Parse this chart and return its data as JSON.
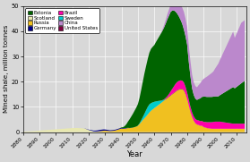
{
  "xlabel": "Year",
  "ylabel": "Mined shale, million tonnes",
  "ylim": [
    0,
    50
  ],
  "xlim": [
    1880,
    2016
  ],
  "stack_order": [
    "Scotland",
    "Russia",
    "Sweden",
    "Germany",
    "United_States",
    "Brazil",
    "Estonia",
    "China"
  ],
  "colors": {
    "Scotland": "#e8e8b0",
    "Russia": "#f0c020",
    "Sweden": "#00cccc",
    "Germany": "#00008b",
    "United_States": "#800040",
    "Brazil": "#ff00aa",
    "Estonia": "#006400",
    "China": "#bb88cc"
  },
  "labels": {
    "Scotland": "Scotland",
    "Russia": "Russia",
    "Sweden": "Sweden",
    "Germany": "Germany",
    "United_States": "United States",
    "Brazil": "Brazil",
    "Estonia": "Estonia",
    "China": "China"
  },
  "legend_order": [
    "Estonia",
    "Scotland",
    "Russia",
    "Germany",
    "Brazil",
    "Sweden",
    "China",
    "United_States"
  ],
  "xticks": [
    1880,
    1890,
    1900,
    1910,
    1920,
    1930,
    1940,
    1950,
    1960,
    1970,
    1980,
    1990,
    2000,
    2010
  ],
  "yticks": [
    0,
    10,
    20,
    30,
    40,
    50
  ],
  "years": [
    1880,
    1881,
    1882,
    1883,
    1884,
    1885,
    1886,
    1887,
    1888,
    1889,
    1890,
    1891,
    1892,
    1893,
    1894,
    1895,
    1896,
    1897,
    1898,
    1899,
    1900,
    1901,
    1902,
    1903,
    1904,
    1905,
    1906,
    1907,
    1908,
    1909,
    1910,
    1911,
    1912,
    1913,
    1914,
    1915,
    1916,
    1917,
    1918,
    1919,
    1920,
    1921,
    1922,
    1923,
    1924,
    1925,
    1926,
    1927,
    1928,
    1929,
    1930,
    1931,
    1932,
    1933,
    1934,
    1935,
    1936,
    1937,
    1938,
    1939,
    1940,
    1941,
    1942,
    1943,
    1944,
    1945,
    1946,
    1947,
    1948,
    1949,
    1950,
    1951,
    1952,
    1953,
    1954,
    1955,
    1956,
    1957,
    1958,
    1959,
    1960,
    1961,
    1962,
    1963,
    1964,
    1965,
    1966,
    1967,
    1968,
    1969,
    1970,
    1971,
    1972,
    1973,
    1974,
    1975,
    1976,
    1977,
    1978,
    1979,
    1980,
    1981,
    1982,
    1983,
    1984,
    1985,
    1986,
    1987,
    1988,
    1989,
    1990,
    1991,
    1992,
    1993,
    1994,
    1995,
    1996,
    1997,
    1998,
    1999,
    2000,
    2001,
    2002,
    2003,
    2004,
    2005,
    2006,
    2007,
    2008,
    2009,
    2010,
    2011,
    2012,
    2013,
    2014,
    2015
  ],
  "data": {
    "Scotland": [
      0.2,
      0.22,
      0.25,
      0.28,
      0.32,
      0.35,
      0.4,
      0.45,
      0.5,
      0.55,
      0.6,
      0.65,
      0.7,
      0.75,
      0.8,
      0.85,
      0.9,
      0.95,
      1.0,
      1.05,
      1.1,
      1.15,
      1.2,
      1.25,
      1.3,
      1.35,
      1.4,
      1.45,
      1.5,
      1.55,
      1.6,
      1.62,
      1.63,
      1.65,
      1.6,
      1.55,
      1.5,
      1.45,
      1.35,
      1.1,
      0.85,
      0.65,
      0.5,
      0.3,
      0.2,
      0.15,
      0.12,
      0.1,
      0.08,
      0.06,
      0.05,
      0.04,
      0.04,
      0.03,
      0.03,
      0.03,
      0.03,
      0.02,
      0.02,
      0.02,
      0.01,
      0.0,
      0.0,
      0.0,
      0.0,
      0.0,
      0.0,
      0.0,
      0.0,
      0.0,
      0.0,
      0.0,
      0.0,
      0.0,
      0.0,
      0.0,
      0.0,
      0.0,
      0.0,
      0.0,
      0.0,
      0.0,
      0.0,
      0.0,
      0.0,
      0.0,
      0.0,
      0.0,
      0.0,
      0.0,
      0.0,
      0.0,
      0.0,
      0.0,
      0.0,
      0.0,
      0.0,
      0.0,
      0.0,
      0.0,
      0.0,
      0.0,
      0.0,
      0.0,
      0.0,
      0.0,
      0.0,
      0.0,
      0.0,
      0.0,
      0.0,
      0.0,
      0.0,
      0.0,
      0.0,
      0.0,
      0.0,
      0.0,
      0.0,
      0.0,
      0.0,
      0.0,
      0.0,
      0.0,
      0.0,
      0.0,
      0.0,
      0.0,
      0.0,
      0.0,
      0.0,
      0.0,
      0.0,
      0.0,
      0.0,
      0.0
    ],
    "Russia": [
      0.0,
      0.0,
      0.0,
      0.0,
      0.0,
      0.0,
      0.0,
      0.0,
      0.0,
      0.0,
      0.0,
      0.0,
      0.0,
      0.0,
      0.0,
      0.0,
      0.0,
      0.0,
      0.0,
      0.0,
      0.0,
      0.0,
      0.0,
      0.0,
      0.0,
      0.0,
      0.0,
      0.0,
      0.0,
      0.0,
      0.0,
      0.0,
      0.0,
      0.0,
      0.0,
      0.0,
      0.0,
      0.0,
      0.0,
      0.0,
      0.0,
      0.0,
      0.0,
      0.0,
      0.05,
      0.1,
      0.2,
      0.3,
      0.4,
      0.5,
      0.55,
      0.5,
      0.45,
      0.4,
      0.45,
      0.5,
      0.6,
      0.8,
      1.0,
      1.2,
      1.4,
      1.3,
      1.4,
      1.5,
      1.6,
      1.6,
      1.7,
      1.8,
      2.0,
      2.2,
      2.5,
      3.2,
      4.0,
      4.8,
      5.5,
      6.2,
      7.0,
      7.8,
      8.5,
      9.0,
      9.5,
      10.0,
      10.5,
      11.0,
      11.5,
      12.0,
      12.5,
      13.0,
      13.5,
      14.0,
      14.5,
      15.0,
      15.5,
      16.0,
      16.5,
      16.8,
      17.0,
      17.0,
      16.5,
      15.0,
      13.0,
      10.5,
      8.0,
      6.0,
      4.5,
      3.5,
      3.0,
      2.8,
      2.5,
      2.5,
      2.0,
      1.8,
      1.6,
      1.5,
      1.4,
      1.3,
      1.3,
      1.3,
      1.3,
      1.3,
      1.3,
      1.3,
      1.3,
      1.3,
      1.3,
      1.3,
      1.3,
      1.3,
      1.3,
      1.3,
      1.3,
      1.3,
      1.3,
      1.3,
      1.3,
      1.3
    ],
    "Sweden": [
      0.0,
      0.0,
      0.0,
      0.0,
      0.0,
      0.0,
      0.0,
      0.0,
      0.0,
      0.0,
      0.0,
      0.0,
      0.0,
      0.0,
      0.0,
      0.0,
      0.0,
      0.0,
      0.0,
      0.0,
      0.0,
      0.0,
      0.0,
      0.0,
      0.0,
      0.0,
      0.0,
      0.0,
      0.0,
      0.0,
      0.0,
      0.0,
      0.0,
      0.0,
      0.0,
      0.0,
      0.0,
      0.0,
      0.0,
      0.0,
      0.0,
      0.0,
      0.0,
      0.0,
      0.0,
      0.0,
      0.0,
      0.0,
      0.0,
      0.0,
      0.0,
      0.0,
      0.0,
      0.0,
      0.0,
      0.0,
      0.0,
      0.0,
      0.0,
      0.0,
      0.0,
      0.0,
      0.0,
      0.0,
      0.0,
      0.0,
      0.0,
      0.0,
      0.0,
      0.0,
      0.1,
      0.3,
      0.7,
      1.2,
      1.8,
      2.5,
      3.0,
      3.2,
      3.0,
      2.8,
      2.5,
      2.2,
      1.8,
      1.4,
      1.0,
      0.6,
      0.3,
      0.1,
      0.0,
      0.0,
      0.0,
      0.0,
      0.0,
      0.0,
      0.0,
      0.0,
      0.0,
      0.0,
      0.0,
      0.0,
      0.0,
      0.0,
      0.0,
      0.0,
      0.0,
      0.0,
      0.0,
      0.0,
      0.0,
      0.0,
      0.0,
      0.0,
      0.0,
      0.0,
      0.0,
      0.0,
      0.0,
      0.0,
      0.0,
      0.0,
      0.0,
      0.0,
      0.0,
      0.0,
      0.0,
      0.0,
      0.0,
      0.0,
      0.0,
      0.0,
      0.0,
      0.0,
      0.0,
      0.0,
      0.0,
      0.0
    ],
    "Germany": [
      0.0,
      0.0,
      0.0,
      0.0,
      0.0,
      0.0,
      0.0,
      0.0,
      0.0,
      0.0,
      0.0,
      0.0,
      0.0,
      0.0,
      0.0,
      0.0,
      0.0,
      0.0,
      0.0,
      0.0,
      0.0,
      0.0,
      0.0,
      0.0,
      0.0,
      0.0,
      0.0,
      0.0,
      0.0,
      0.0,
      0.0,
      0.0,
      0.0,
      0.0,
      0.0,
      0.0,
      0.0,
      0.0,
      0.05,
      0.1,
      0.15,
      0.2,
      0.25,
      0.3,
      0.35,
      0.4,
      0.45,
      0.5,
      0.5,
      0.5,
      0.45,
      0.4,
      0.35,
      0.3,
      0.3,
      0.3,
      0.3,
      0.3,
      0.3,
      0.3,
      0.28,
      0.25,
      0.2,
      0.15,
      0.1,
      0.05,
      0.02,
      0.0,
      0.0,
      0.0,
      0.0,
      0.0,
      0.0,
      0.0,
      0.0,
      0.0,
      0.0,
      0.0,
      0.0,
      0.0,
      0.0,
      0.0,
      0.0,
      0.0,
      0.0,
      0.0,
      0.0,
      0.0,
      0.0,
      0.0,
      0.0,
      0.0,
      0.0,
      0.0,
      0.0,
      0.0,
      0.0,
      0.0,
      0.0,
      0.0,
      0.0,
      0.0,
      0.0,
      0.0,
      0.0,
      0.0,
      0.0,
      0.0,
      0.0,
      0.0,
      0.0,
      0.0,
      0.0,
      0.0,
      0.0,
      0.0,
      0.0,
      0.0,
      0.0,
      0.0,
      0.0,
      0.0,
      0.0,
      0.0,
      0.0,
      0.0,
      0.0,
      0.0,
      0.0,
      0.0,
      0.0,
      0.0,
      0.0,
      0.0,
      0.0,
      0.0
    ],
    "United_States": [
      0.0,
      0.0,
      0.0,
      0.0,
      0.0,
      0.0,
      0.0,
      0.0,
      0.0,
      0.0,
      0.0,
      0.0,
      0.0,
      0.0,
      0.0,
      0.0,
      0.0,
      0.0,
      0.0,
      0.0,
      0.0,
      0.0,
      0.0,
      0.0,
      0.0,
      0.0,
      0.0,
      0.0,
      0.0,
      0.0,
      0.0,
      0.0,
      0.0,
      0.0,
      0.0,
      0.0,
      0.0,
      0.0,
      0.0,
      0.0,
      0.0,
      0.0,
      0.0,
      0.0,
      0.0,
      0.0,
      0.0,
      0.0,
      0.0,
      0.0,
      0.0,
      0.0,
      0.0,
      0.0,
      0.0,
      0.0,
      0.0,
      0.0,
      0.0,
      0.0,
      0.0,
      0.0,
      0.0,
      0.0,
      0.0,
      0.0,
      0.0,
      0.0,
      0.0,
      0.0,
      0.0,
      0.0,
      0.0,
      0.0,
      0.0,
      0.0,
      0.0,
      0.0,
      0.0,
      0.0,
      0.0,
      0.0,
      0.0,
      0.0,
      0.0,
      0.1,
      0.15,
      0.2,
      0.2,
      0.2,
      0.2,
      0.2,
      0.2,
      0.2,
      0.2,
      0.2,
      0.2,
      0.2,
      0.2,
      0.2,
      0.15,
      0.1,
      0.08,
      0.05,
      0.05,
      0.05,
      0.05,
      0.05,
      0.05,
      0.05,
      0.05,
      0.05,
      0.05,
      0.05,
      0.05,
      0.05,
      0.05,
      0.05,
      0.05,
      0.05,
      0.05,
      0.05,
      0.05,
      0.05,
      0.05,
      0.05,
      0.05,
      0.05,
      0.05,
      0.05,
      0.05,
      0.05,
      0.05,
      0.05,
      0.05,
      0.05
    ],
    "Brazil": [
      0.0,
      0.0,
      0.0,
      0.0,
      0.0,
      0.0,
      0.0,
      0.0,
      0.0,
      0.0,
      0.0,
      0.0,
      0.0,
      0.0,
      0.0,
      0.0,
      0.0,
      0.0,
      0.0,
      0.0,
      0.0,
      0.0,
      0.0,
      0.0,
      0.0,
      0.0,
      0.0,
      0.0,
      0.0,
      0.0,
      0.0,
      0.0,
      0.0,
      0.0,
      0.0,
      0.0,
      0.0,
      0.0,
      0.0,
      0.0,
      0.0,
      0.0,
      0.0,
      0.0,
      0.0,
      0.0,
      0.0,
      0.0,
      0.0,
      0.0,
      0.0,
      0.0,
      0.0,
      0.0,
      0.0,
      0.0,
      0.0,
      0.0,
      0.0,
      0.0,
      0.0,
      0.0,
      0.0,
      0.0,
      0.0,
      0.0,
      0.0,
      0.0,
      0.0,
      0.0,
      0.0,
      0.0,
      0.0,
      0.0,
      0.0,
      0.0,
      0.0,
      0.0,
      0.0,
      0.0,
      0.0,
      0.0,
      0.0,
      0.0,
      0.0,
      0.0,
      0.1,
      0.3,
      0.6,
      1.0,
      1.5,
      2.0,
      2.5,
      3.0,
      3.2,
      3.3,
      3.3,
      3.2,
      3.0,
      2.8,
      2.5,
      2.2,
      2.0,
      1.8,
      1.7,
      1.7,
      1.7,
      1.8,
      1.8,
      1.9,
      2.0,
      2.2,
      2.3,
      2.4,
      2.5,
      2.6,
      2.7,
      2.8,
      2.8,
      2.8,
      2.8,
      2.7,
      2.6,
      2.5,
      2.4,
      2.3,
      2.2,
      2.1,
      2.0,
      2.0,
      2.0,
      2.0,
      2.0,
      2.0,
      2.0,
      2.0
    ],
    "Estonia": [
      0.0,
      0.0,
      0.0,
      0.0,
      0.0,
      0.0,
      0.0,
      0.0,
      0.0,
      0.0,
      0.0,
      0.0,
      0.0,
      0.0,
      0.0,
      0.0,
      0.0,
      0.0,
      0.0,
      0.0,
      0.0,
      0.0,
      0.0,
      0.0,
      0.0,
      0.0,
      0.0,
      0.0,
      0.0,
      0.0,
      0.0,
      0.0,
      0.0,
      0.0,
      0.0,
      0.0,
      0.0,
      0.0,
      0.0,
      0.0,
      0.0,
      0.0,
      0.0,
      0.0,
      0.0,
      0.0,
      0.0,
      0.0,
      0.0,
      0.0,
      0.0,
      0.0,
      0.0,
      0.0,
      0.0,
      0.0,
      0.0,
      0.0,
      0.0,
      0.05,
      0.2,
      0.4,
      0.8,
      1.5,
      2.5,
      3.5,
      4.5,
      5.5,
      6.5,
      7.5,
      8.5,
      10.0,
      12.0,
      14.0,
      16.0,
      17.5,
      19.0,
      20.5,
      21.5,
      22.0,
      22.5,
      23.5,
      24.5,
      25.5,
      26.5,
      27.5,
      28.5,
      29.5,
      30.5,
      31.0,
      31.5,
      31.0,
      30.0,
      28.5,
      27.0,
      25.5,
      24.0,
      22.5,
      21.0,
      20.0,
      19.0,
      15.0,
      12.0,
      9.5,
      8.5,
      8.0,
      8.0,
      8.5,
      9.0,
      9.5,
      10.0,
      10.0,
      10.0,
      10.0,
      10.0,
      10.0,
      10.0,
      10.0,
      10.0,
      10.0,
      10.5,
      11.0,
      11.5,
      12.0,
      12.5,
      13.0,
      13.5,
      14.0,
      14.5,
      14.0,
      14.5,
      15.0,
      15.5,
      16.0,
      16.5,
      17.0
    ],
    "China": [
      0.0,
      0.0,
      0.0,
      0.0,
      0.0,
      0.0,
      0.0,
      0.0,
      0.0,
      0.0,
      0.0,
      0.0,
      0.0,
      0.0,
      0.0,
      0.0,
      0.0,
      0.0,
      0.0,
      0.0,
      0.0,
      0.0,
      0.0,
      0.0,
      0.0,
      0.0,
      0.0,
      0.0,
      0.0,
      0.0,
      0.0,
      0.0,
      0.0,
      0.0,
      0.0,
      0.0,
      0.0,
      0.0,
      0.0,
      0.0,
      0.0,
      0.0,
      0.0,
      0.0,
      0.0,
      0.0,
      0.0,
      0.0,
      0.0,
      0.0,
      0.0,
      0.0,
      0.0,
      0.0,
      0.0,
      0.0,
      0.0,
      0.0,
      0.0,
      0.0,
      0.0,
      0.0,
      0.0,
      0.0,
      0.0,
      0.0,
      0.0,
      0.0,
      0.0,
      0.0,
      0.0,
      0.0,
      0.0,
      0.0,
      0.0,
      0.0,
      0.0,
      0.0,
      0.0,
      0.0,
      0.0,
      0.0,
      0.0,
      0.0,
      0.0,
      0.5,
      1.0,
      1.5,
      2.0,
      2.5,
      3.0,
      3.5,
      4.0,
      4.5,
      5.0,
      5.5,
      6.0,
      6.5,
      7.0,
      7.0,
      7.0,
      6.5,
      6.0,
      5.5,
      5.0,
      5.0,
      5.0,
      5.5,
      6.0,
      6.5,
      7.0,
      7.5,
      8.0,
      8.5,
      9.0,
      9.5,
      10.0,
      11.0,
      12.0,
      13.0,
      14.0,
      15.0,
      16.0,
      17.0,
      18.0,
      19.0,
      20.0,
      21.0,
      22.0,
      20.0,
      21.0,
      22.0,
      23.0,
      24.0,
      24.0,
      24.0
    ]
  }
}
